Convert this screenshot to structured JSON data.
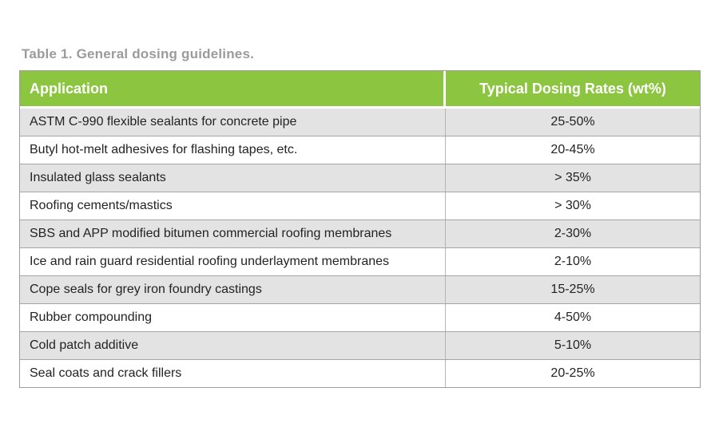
{
  "table": {
    "caption": "Table 1. General dosing guidelines.",
    "columns": [
      {
        "label": "Application"
      },
      {
        "label": "Typical Dosing Rates (wt%)"
      }
    ],
    "rows": [
      {
        "application": "ASTM C-990 flexible sealants for concrete pipe",
        "rate": "25-50%"
      },
      {
        "application": "Butyl hot-melt adhesives for flashing tapes, etc.",
        "rate": "20-45%"
      },
      {
        "application": "Insulated glass sealants",
        "rate": "> 35%"
      },
      {
        "application": "Roofing cements/mastics",
        "rate": "> 30%"
      },
      {
        "application": "SBS and APP modified bitumen commercial roofing membranes",
        "rate": "2-30%"
      },
      {
        "application": "Ice and rain guard residential roofing underlayment membranes",
        "rate": "2-10%"
      },
      {
        "application": "Cope seals for grey iron foundry castings",
        "rate": "15-25%"
      },
      {
        "application": "Rubber compounding",
        "rate": "4-50%"
      },
      {
        "application": "Cold patch additive",
        "rate": "5-10%"
      },
      {
        "application": "Seal coats and crack fillers",
        "rate": "20-25%"
      }
    ],
    "colors": {
      "header_bg": "#8cc540",
      "header_text": "#ffffff",
      "row_alt_bg": "#e3e3e3",
      "row_bg": "#ffffff",
      "outer_border": "#9d9d9d",
      "column_divider": "#b5b5b5",
      "caption_text": "#9b9b9b",
      "body_text": "#232323"
    }
  },
  "chart_data": {
    "type": "table",
    "title": "Table 1. General dosing guidelines.",
    "columns": [
      "Application",
      "Typical Dosing Rates (wt%)"
    ],
    "rows": [
      [
        "ASTM C-990 flexible sealants for concrete pipe",
        "25-50%"
      ],
      [
        "Butyl hot-melt adhesives for flashing tapes, etc.",
        "20-45%"
      ],
      [
        "Insulated glass sealants",
        "> 35%"
      ],
      [
        "Roofing cements/mastics",
        "> 30%"
      ],
      [
        "SBS and APP modified bitumen commercial roofing membranes",
        "2-30%"
      ],
      [
        "Ice and rain guard residential roofing underlayment membranes",
        "2-10%"
      ],
      [
        "Cope seals for grey iron foundry castings",
        "15-25%"
      ],
      [
        "Rubber compounding",
        "4-50%"
      ],
      [
        "Cold patch additive",
        "5-10%"
      ],
      [
        "Seal coats and crack fillers",
        "20-25%"
      ]
    ]
  }
}
